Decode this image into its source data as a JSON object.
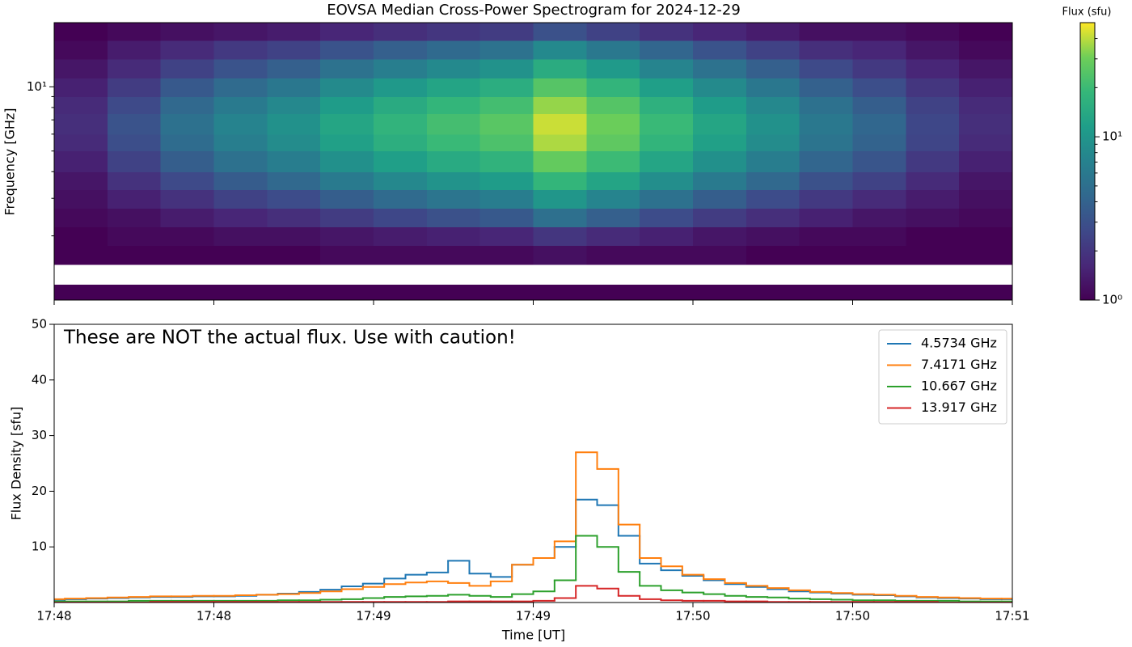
{
  "chart_data": [
    {
      "type": "heatmap",
      "title": "EOVSA Median Cross-Power Spectrogram for 2024-12-29",
      "ylabel": "Frequency [GHz]",
      "xbins": [
        0,
        10,
        20,
        30,
        40,
        50,
        60,
        70,
        80,
        90,
        100,
        110,
        120,
        130,
        140,
        150,
        160,
        170,
        180
      ],
      "ybins": [
        1,
        1.18,
        1.47,
        1.8,
        2.2,
        2.7,
        3.3,
        4.0,
        5.0,
        6.0,
        7.5,
        9.0,
        11,
        13.5,
        16.5,
        20
      ],
      "z": [
        [
          1.0,
          1.0,
          1.0,
          1.0,
          1.0,
          1.0,
          1.0,
          1.0,
          1.0,
          1.0,
          1.0,
          1.0,
          1.0,
          1.0,
          1.0,
          1.0,
          1.0,
          1.0
        ],
        [
          null,
          null,
          null,
          null,
          null,
          null,
          null,
          null,
          null,
          null,
          null,
          null,
          null,
          null,
          null,
          null,
          null,
          null
        ],
        [
          1.0,
          1.0,
          1.0,
          1.0,
          1.0,
          1.1,
          1.1,
          1.1,
          1.1,
          1.2,
          1.1,
          1.1,
          1.1,
          1.0,
          1.0,
          1.0,
          1.0,
          1.0
        ],
        [
          1.0,
          1.1,
          1.1,
          1.2,
          1.2,
          1.3,
          1.4,
          1.5,
          1.6,
          2.0,
          1.7,
          1.5,
          1.3,
          1.2,
          1.1,
          1.1,
          1.0,
          1.0
        ],
        [
          1.1,
          1.2,
          1.4,
          1.6,
          1.8,
          2.2,
          2.6,
          3.0,
          3.4,
          5.0,
          3.8,
          2.8,
          2.2,
          1.8,
          1.5,
          1.3,
          1.2,
          1.1
        ],
        [
          1.2,
          1.5,
          1.9,
          2.4,
          2.8,
          3.7,
          4.6,
          5.5,
          6.4,
          10.0,
          7.3,
          5.1,
          3.7,
          2.8,
          2.1,
          1.7,
          1.4,
          1.2
        ],
        [
          1.3,
          1.9,
          2.7,
          3.6,
          4.4,
          6.1,
          7.8,
          9.5,
          11.2,
          18.0,
          12.9,
          8.7,
          6.1,
          4.4,
          3.0,
          2.4,
          1.7,
          1.3
        ],
        [
          1.5,
          2.4,
          3.7,
          5.1,
          6.4,
          9.1,
          11.8,
          14.5,
          17.2,
          28.0,
          19.9,
          13.2,
          9.1,
          6.4,
          4.2,
          3.2,
          2.1,
          1.5
        ],
        [
          1.7,
          2.9,
          4.7,
          6.6,
          8.4,
          12.1,
          15.8,
          19.5,
          23.2,
          38.0,
          26.9,
          17.7,
          12.1,
          8.4,
          5.4,
          4.0,
          2.5,
          1.7
        ],
        [
          1.8,
          3.1,
          5.1,
          7.2,
          9.2,
          13.3,
          17.4,
          21.5,
          25.6,
          42.0,
          29.7,
          19.5,
          13.3,
          9.2,
          5.9,
          4.3,
          2.6,
          1.8
        ],
        [
          1.7,
          2.7,
          4.4,
          6.1,
          7.8,
          11.2,
          14.6,
          18.0,
          21.4,
          35.0,
          24.8,
          16.3,
          11.2,
          7.8,
          5.1,
          3.7,
          2.4,
          1.7
        ],
        [
          1.5,
          2.2,
          3.4,
          4.6,
          5.8,
          8.2,
          10.6,
          13.0,
          15.4,
          25.0,
          17.8,
          11.8,
          8.2,
          5.8,
          3.9,
          2.9,
          2.0,
          1.5
        ],
        [
          1.3,
          1.7,
          2.4,
          3.1,
          3.8,
          5.2,
          6.6,
          8.0,
          9.4,
          15.0,
          10.8,
          7.3,
          5.2,
          3.8,
          2.7,
          2.1,
          1.6,
          1.3
        ],
        [
          1.1,
          1.4,
          1.7,
          2.1,
          2.4,
          3.1,
          3.8,
          4.5,
          5.2,
          8.0,
          5.9,
          4.2,
          3.1,
          2.4,
          1.8,
          1.6,
          1.3,
          1.1
        ],
        [
          1.0,
          1.1,
          1.2,
          1.3,
          1.4,
          1.6,
          1.8,
          2.0,
          2.2,
          3.0,
          2.4,
          1.9,
          1.6,
          1.4,
          1.2,
          1.2,
          1.1,
          1.0
        ]
      ],
      "xlim": [
        0,
        180
      ],
      "ylim": [
        1,
        20
      ],
      "yscale": "log",
      "yticks": [
        {
          "value": 10,
          "label": "10¹"
        }
      ],
      "yminor": [
        2,
        3,
        4,
        5,
        6,
        7,
        8,
        9
      ],
      "colormap": "viridis",
      "colorbar": {
        "label": "Flux (sfu)",
        "scale": "log",
        "lim": [
          1,
          50
        ],
        "ticks": [
          {
            "value": 1,
            "label": "10⁰"
          },
          {
            "value": 10,
            "label": "10¹"
          }
        ],
        "minor": [
          2,
          3,
          4,
          5,
          6,
          7,
          8,
          9,
          20,
          30,
          40
        ]
      }
    },
    {
      "type": "line",
      "drawstyle": "steps-mid",
      "xlabel": "Time [UT]",
      "ylabel": "Flux Density [sfu]",
      "annotation": "These are NOT the actual flux. Use with caution!",
      "x": [
        0,
        4,
        8,
        12,
        16,
        20,
        24,
        28,
        32,
        36,
        40,
        44,
        48,
        52,
        56,
        60,
        64,
        68,
        72,
        76,
        80,
        84,
        88,
        92,
        96,
        100,
        104,
        108,
        112,
        116,
        120,
        124,
        128,
        132,
        136,
        140,
        144,
        148,
        152,
        156,
        160,
        164,
        168,
        172,
        176,
        180
      ],
      "series": [
        {
          "name": "4.5734 GHz",
          "color": "#1f77b4",
          "values": [
            0.5,
            0.6,
            0.7,
            0.8,
            0.9,
            1.0,
            1.0,
            1.1,
            1.1,
            1.2,
            1.4,
            1.6,
            1.9,
            2.3,
            2.9,
            3.4,
            4.3,
            5.0,
            5.4,
            7.5,
            5.2,
            4.6,
            6.8,
            8.0,
            10.0,
            18.5,
            17.5,
            12.0,
            7.0,
            5.8,
            4.8,
            4.0,
            3.3,
            2.8,
            2.4,
            2.0,
            1.8,
            1.6,
            1.4,
            1.3,
            1.1,
            0.9,
            0.8,
            0.7,
            0.6,
            0.6
          ]
        },
        {
          "name": "7.4171 GHz",
          "color": "#ff7f0e",
          "values": [
            0.6,
            0.7,
            0.8,
            0.9,
            1.0,
            1.1,
            1.1,
            1.2,
            1.2,
            1.3,
            1.4,
            1.5,
            1.7,
            2.0,
            2.4,
            2.8,
            3.3,
            3.6,
            3.8,
            3.5,
            3.0,
            3.8,
            6.8,
            8.0,
            11.0,
            27.0,
            24.0,
            14.0,
            8.0,
            6.5,
            5.0,
            4.2,
            3.5,
            3.0,
            2.6,
            2.2,
            1.9,
            1.7,
            1.5,
            1.4,
            1.2,
            1.0,
            0.9,
            0.8,
            0.7,
            0.7
          ]
        },
        {
          "name": "10.667 GHz",
          "color": "#2ca02c",
          "values": [
            0.2,
            0.2,
            0.2,
            0.2,
            0.3,
            0.3,
            0.3,
            0.3,
            0.3,
            0.3,
            0.3,
            0.4,
            0.4,
            0.5,
            0.6,
            0.8,
            1.0,
            1.1,
            1.2,
            1.4,
            1.2,
            1.0,
            1.5,
            2.0,
            4.0,
            12.0,
            10.0,
            5.5,
            3.0,
            2.2,
            1.8,
            1.5,
            1.2,
            1.0,
            0.9,
            0.7,
            0.6,
            0.5,
            0.4,
            0.4,
            0.3,
            0.3,
            0.3,
            0.2,
            0.2,
            0.2
          ]
        },
        {
          "name": "13.917 GHz",
          "color": "#d62728",
          "values": [
            0.0,
            0.0,
            0.0,
            0.0,
            0.0,
            0.1,
            0.1,
            0.1,
            0.1,
            0.1,
            0.1,
            0.1,
            0.1,
            0.1,
            0.1,
            0.1,
            0.1,
            0.1,
            0.1,
            0.2,
            0.2,
            0.2,
            0.2,
            0.3,
            0.8,
            3.0,
            2.5,
            1.2,
            0.6,
            0.4,
            0.3,
            0.3,
            0.2,
            0.2,
            0.1,
            0.1,
            0.1,
            0.1,
            0.1,
            0.1,
            0.1,
            0.1,
            0.0,
            0.0,
            0.0,
            0.0
          ]
        }
      ],
      "xlim": [
        0,
        180
      ],
      "xticks": [
        {
          "value": 0,
          "label": "17:48"
        },
        {
          "value": 30,
          "label": "17:48"
        },
        {
          "value": 60,
          "label": "17:49"
        },
        {
          "value": 90,
          "label": "17:49"
        },
        {
          "value": 120,
          "label": "17:50"
        },
        {
          "value": 150,
          "label": "17:50"
        },
        {
          "value": 180,
          "label": "17:51"
        }
      ],
      "ylim": [
        0,
        50
      ],
      "yticks": [
        10,
        20,
        30,
        40,
        50
      ],
      "legend": "upper right"
    }
  ]
}
